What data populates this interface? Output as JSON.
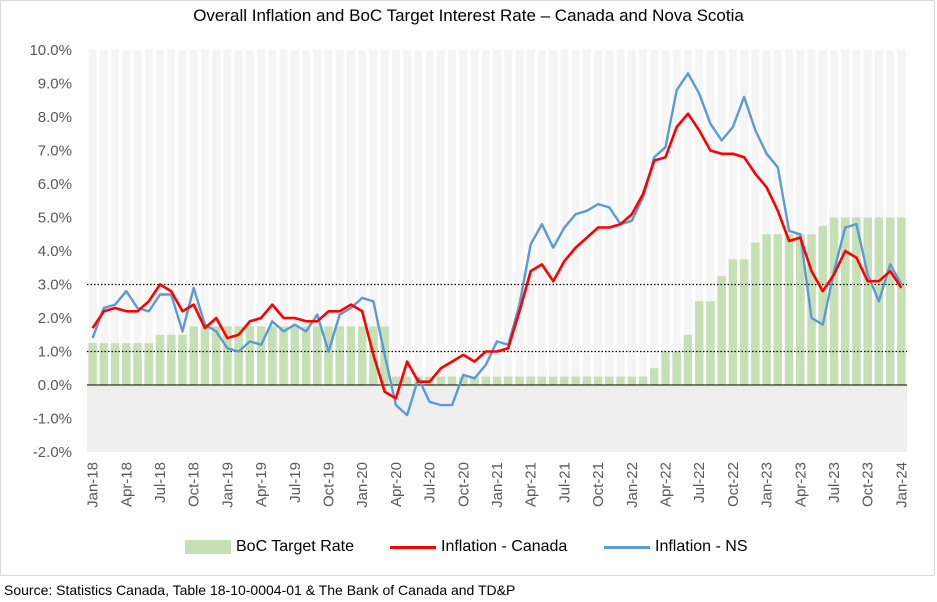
{
  "source": "Source: Statistics Canada, Table 18-10-0004-01 & The Bank of Canada and TD&P",
  "chart_data": {
    "type": "bar+line",
    "title": "Overall Inflation and BoC Target Interest Rate – Canada and Nova Scotia",
    "xlabel": "",
    "ylabel": "",
    "ylim": [
      -2.0,
      10.0
    ],
    "y_tick_labels": [
      "-2.0%",
      "-1.0%",
      "0.0%",
      "1.0%",
      "2.0%",
      "3.0%",
      "4.0%",
      "5.0%",
      "6.0%",
      "7.0%",
      "8.0%",
      "9.0%",
      "10.0%"
    ],
    "x_tick_labels": [
      "Jan-18",
      "Apr-18",
      "Jul-18",
      "Oct-18",
      "Jan-19",
      "Apr-19",
      "Jul-19",
      "Oct-19",
      "Jan-20",
      "Apr-20",
      "Jul-20",
      "Oct-20",
      "Jan-21",
      "Apr-21",
      "Jul-21",
      "Oct-21",
      "Jan-22",
      "Apr-22",
      "Jul-22",
      "Oct-22",
      "Jan-23",
      "Apr-23",
      "Jul-23",
      "Oct-23",
      "Jan-24"
    ],
    "x_start": "Jan-18",
    "x_end": "Jan-24",
    "frequency": "monthly",
    "reference_lines": [
      1.0,
      3.0
    ],
    "grid": false,
    "legend_position": "bottom",
    "series": [
      {
        "name": "BoC Target Rate",
        "type": "bar",
        "color": "#c5e0b4",
        "values": [
          1.25,
          1.25,
          1.25,
          1.25,
          1.25,
          1.25,
          1.5,
          1.5,
          1.5,
          1.75,
          1.75,
          1.75,
          1.75,
          1.75,
          1.75,
          1.75,
          1.75,
          1.75,
          1.75,
          1.75,
          1.75,
          1.75,
          1.75,
          1.75,
          1.75,
          1.75,
          1.75,
          0.25,
          0.25,
          0.25,
          0.25,
          0.25,
          0.25,
          0.25,
          0.25,
          0.25,
          0.25,
          0.25,
          0.25,
          0.25,
          0.25,
          0.25,
          0.25,
          0.25,
          0.25,
          0.25,
          0.25,
          0.25,
          0.25,
          0.25,
          0.5,
          1.0,
          1.0,
          1.5,
          2.5,
          2.5,
          3.25,
          3.75,
          3.75,
          4.25,
          4.5,
          4.5,
          4.5,
          4.5,
          4.5,
          4.75,
          5.0,
          5.0,
          5.0,
          5.0,
          5.0,
          5.0,
          5.0
        ]
      },
      {
        "name": "Inflation - Canada",
        "type": "line",
        "color": "#ff0000",
        "values": [
          1.7,
          2.2,
          2.3,
          2.2,
          2.2,
          2.5,
          3.0,
          2.8,
          2.2,
          2.4,
          1.7,
          2.0,
          1.4,
          1.5,
          1.9,
          2.0,
          2.4,
          2.0,
          2.0,
          1.9,
          1.9,
          2.2,
          2.2,
          2.4,
          2.2,
          0.9,
          -0.2,
          -0.4,
          0.7,
          0.1,
          0.1,
          0.5,
          0.7,
          0.9,
          0.7,
          1.0,
          1.0,
          1.1,
          2.2,
          3.4,
          3.6,
          3.1,
          3.7,
          4.1,
          4.4,
          4.7,
          4.7,
          4.8,
          5.1,
          5.7,
          6.7,
          6.8,
          7.7,
          8.1,
          7.6,
          7.0,
          6.9,
          6.9,
          6.8,
          6.3,
          5.9,
          5.2,
          4.3,
          4.4,
          3.4,
          2.8,
          3.3,
          4.0,
          3.8,
          3.1,
          3.1,
          3.4,
          2.9
        ]
      },
      {
        "name": "Inflation - NS",
        "type": "line",
        "color": "#5b9bd5",
        "values": [
          1.4,
          2.3,
          2.4,
          2.8,
          2.3,
          2.2,
          2.7,
          2.7,
          1.6,
          2.9,
          1.8,
          1.6,
          1.1,
          1.0,
          1.3,
          1.2,
          1.9,
          1.6,
          1.8,
          1.6,
          2.1,
          1.0,
          2.1,
          2.3,
          2.6,
          2.5,
          0.9,
          -0.6,
          -0.9,
          0.2,
          -0.5,
          -0.6,
          -0.6,
          0.3,
          0.2,
          0.6,
          1.3,
          1.2,
          2.4,
          4.2,
          4.8,
          4.1,
          4.7,
          5.1,
          5.2,
          5.4,
          5.3,
          4.8,
          4.9,
          5.6,
          6.8,
          7.1,
          8.8,
          9.3,
          8.7,
          7.8,
          7.3,
          7.7,
          8.6,
          7.6,
          6.9,
          6.5,
          4.6,
          4.5,
          2.0,
          1.8,
          3.4,
          4.7,
          4.8,
          3.3,
          2.5,
          3.6,
          3.0
        ]
      }
    ]
  }
}
